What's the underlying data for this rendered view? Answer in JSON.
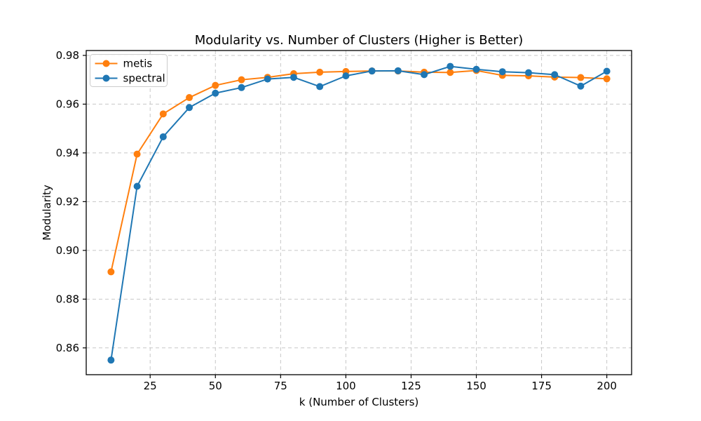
{
  "chart_data": {
    "type": "line",
    "title": "Modularity vs. Number of Clusters (Higher is Better)",
    "xlabel": "k (Number of Clusters)",
    "ylabel": "Modularity",
    "x": [
      10,
      20,
      30,
      40,
      50,
      60,
      70,
      80,
      90,
      100,
      110,
      120,
      130,
      140,
      150,
      160,
      170,
      180,
      190,
      200
    ],
    "series": [
      {
        "name": "metis",
        "color": "#ff7f0e",
        "marker": "circle",
        "values": [
          0.8912,
          0.9395,
          0.956,
          0.9627,
          0.9677,
          0.97,
          0.971,
          0.9725,
          0.9731,
          0.9734,
          0.9736,
          0.9736,
          0.9731,
          0.973,
          0.9738,
          0.9718,
          0.9716,
          0.9711,
          0.9709,
          0.9704
        ]
      },
      {
        "name": "spectral",
        "color": "#1f77b4",
        "marker": "circle",
        "values": [
          0.855,
          0.9263,
          0.9466,
          0.9586,
          0.9645,
          0.9668,
          0.9703,
          0.971,
          0.9672,
          0.9716,
          0.9736,
          0.9737,
          0.9721,
          0.9755,
          0.9743,
          0.9733,
          0.9729,
          0.9721,
          0.9674,
          0.9735
        ]
      }
    ],
    "xlim": [
      0.5,
      209.5
    ],
    "ylim": [
      0.849,
      0.982
    ],
    "xticks": [
      25,
      50,
      75,
      100,
      125,
      150,
      175,
      200
    ],
    "yticks": [
      0.86,
      0.88,
      0.9,
      0.92,
      0.94,
      0.96,
      0.98
    ],
    "grid": true,
    "grid_style": "dashed",
    "legend": {
      "position": "upper left",
      "entries": [
        "metis",
        "spectral"
      ]
    },
    "colors": {
      "background": "#ffffff",
      "grid": "#c7c7c7",
      "spine": "#000000",
      "legend_border": "#cccccc"
    }
  }
}
